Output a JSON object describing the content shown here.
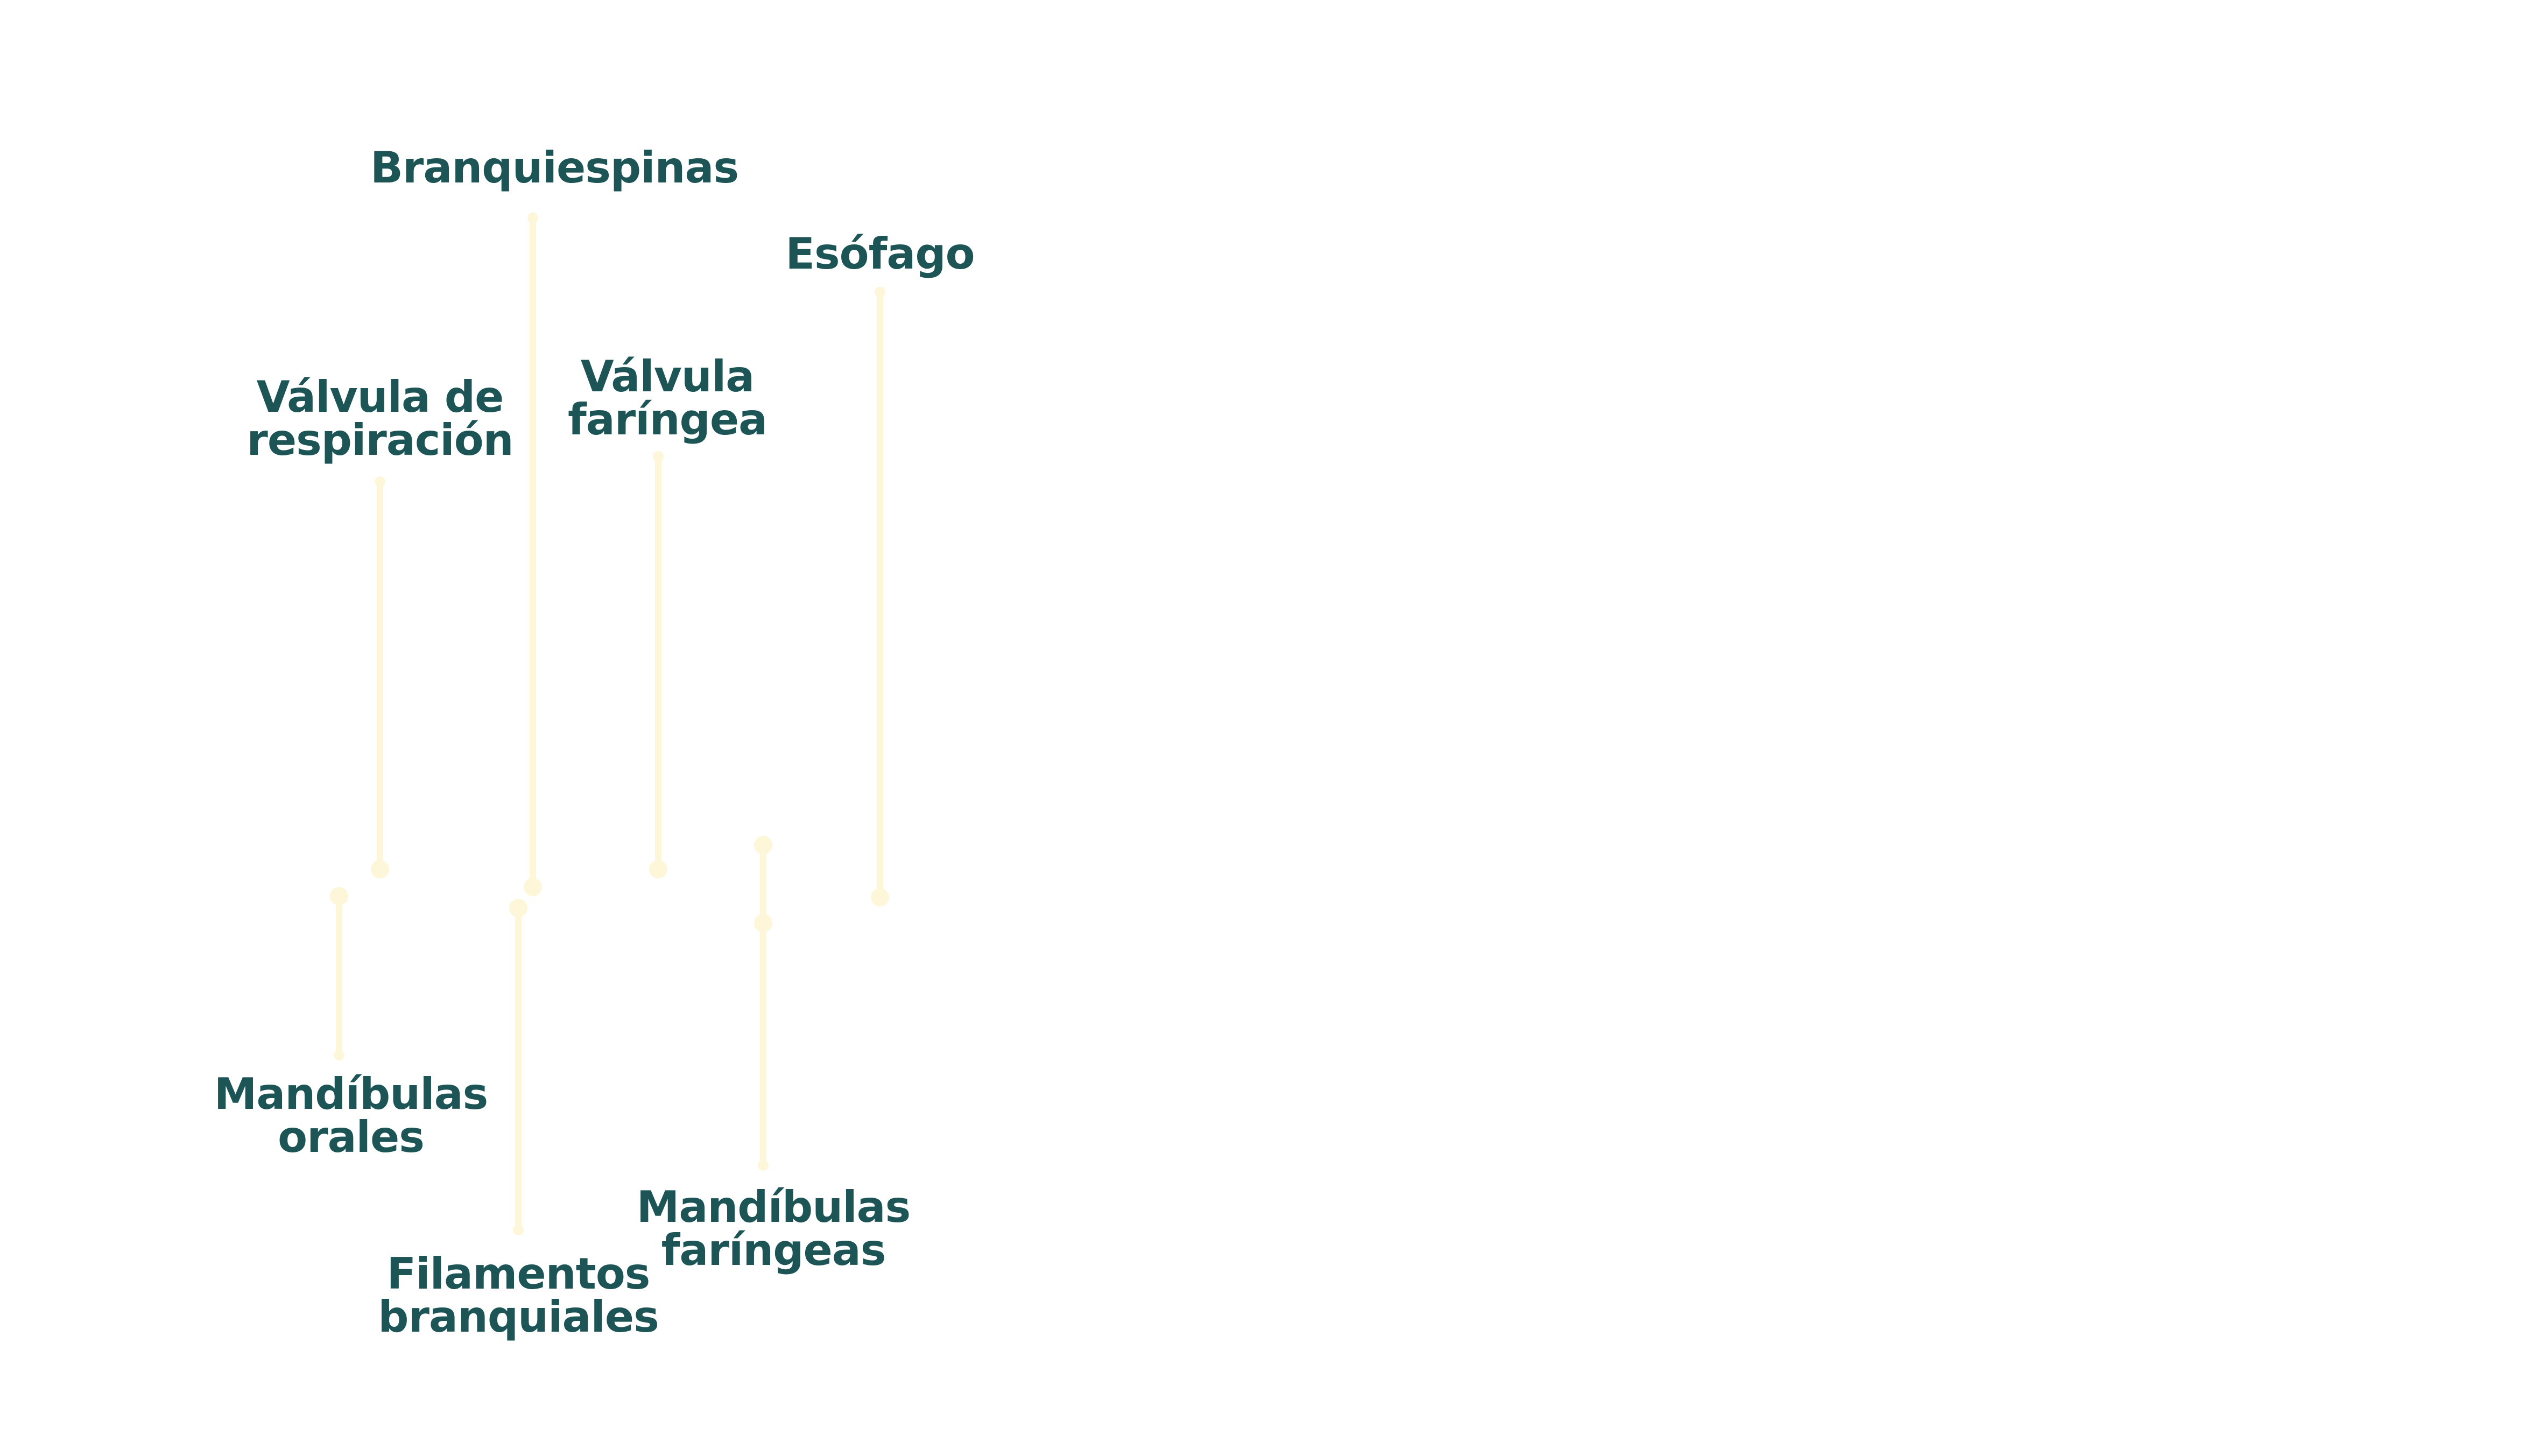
{
  "colors": {
    "label_text": "#1d5557",
    "leader_line": "#fdf6d8"
  },
  "labels": {
    "branquiespinas": [
      "Branquiespinas"
    ],
    "esofago": [
      "Esófago"
    ],
    "valvula_respiracion": [
      "Válvula de",
      "respiración"
    ],
    "valvula_faringea": [
      "Válvula",
      "faríngea"
    ],
    "mandibulas_orales": [
      "Mandíbulas",
      "orales"
    ],
    "mandibulas_faringeas": [
      "Mandíbulas",
      "faríngeas"
    ],
    "filamentos_branquiales": [
      "Filamentos",
      "branquiales"
    ]
  }
}
